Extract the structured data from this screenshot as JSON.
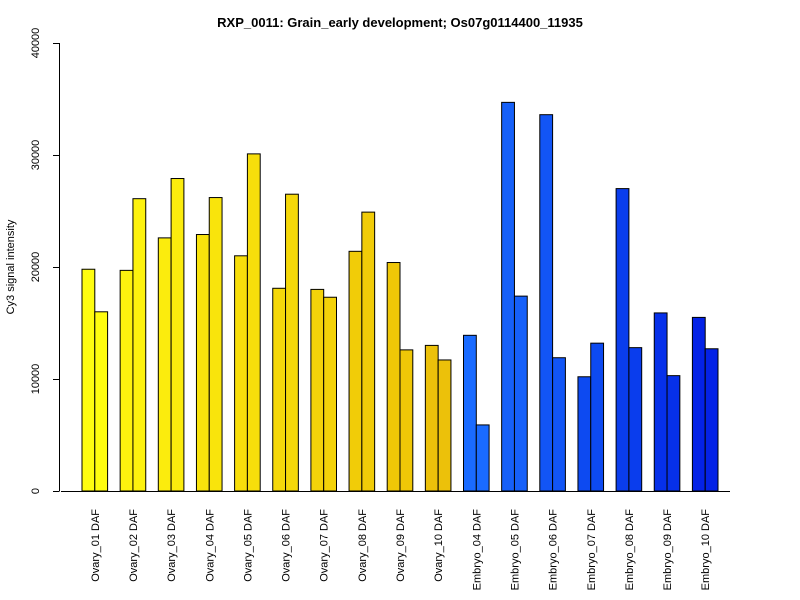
{
  "chart_data": {
    "type": "bar",
    "title": "RXP_0011: Grain_early development; Os07g0114400_11935",
    "xlabel": "",
    "ylabel": "Cy3 signal intensity",
    "ylim": [
      0,
      40000
    ],
    "yticks": [
      0,
      10000,
      20000,
      30000,
      40000
    ],
    "ytick_labels": [
      "0",
      "10000",
      "20000",
      "30000",
      "40000"
    ],
    "grid": false,
    "legend": "none",
    "categories": [
      "Ovary_01 DAF",
      "Ovary_02 DAF",
      "Ovary_03 DAF",
      "Ovary_04 DAF",
      "Ovary_05 DAF",
      "Ovary_06 DAF",
      "Ovary_07 DAF",
      "Ovary_08 DAF",
      "Ovary_09 DAF",
      "Ovary_10 DAF",
      "Embryo_04 DAF",
      "Embryo_05 DAF",
      "Embryo_06 DAF",
      "Embryo_07 DAF",
      "Embryo_08 DAF",
      "Embryo_09 DAF",
      "Embryo_10 DAF"
    ],
    "series": [
      {
        "values": [
          19800,
          19700,
          22600,
          22900,
          21000,
          18100,
          18000,
          21400,
          20400,
          13000,
          13900,
          34700,
          33600,
          10200,
          27000,
          15900,
          15500
        ]
      },
      {
        "values": [
          16000,
          26100,
          27900,
          26200,
          30100,
          26500,
          17300,
          24900,
          12600,
          11700,
          5900,
          17400,
          11900,
          13200,
          12800,
          10300,
          12700
        ]
      }
    ],
    "colors": [
      "#fffd10",
      "#fdf20e",
      "#fbec0d",
      "#f9e40c",
      "#f7de0b",
      "#f5d80a",
      "#f3d209",
      "#f1cc08",
      "#efc707",
      "#ecc10a",
      "#1a6bff",
      "#1660f9",
      "#1255f5",
      "#0d4af1",
      "#0a3ded",
      "#0630ea",
      "#0422e6"
    ]
  }
}
